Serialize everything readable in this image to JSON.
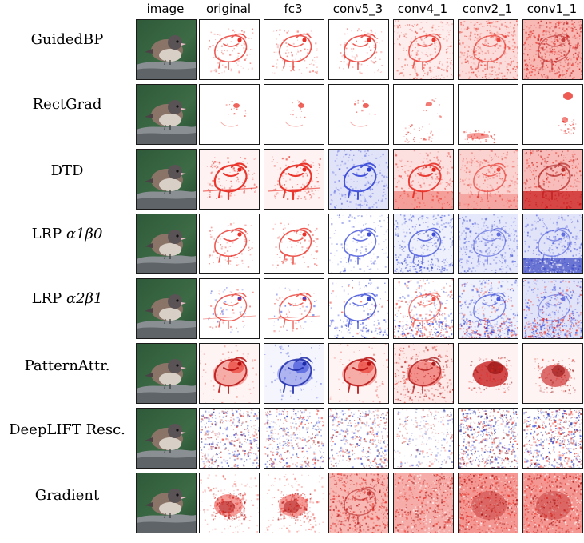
{
  "columns": [
    "image",
    "original",
    "fc3",
    "conv5_3",
    "conv4_1",
    "conv2_1",
    "conv1_1"
  ],
  "rows": [
    {
      "label": "GuidedBP",
      "maps": [
        "photo",
        "red-edge",
        "red-edge",
        "red-edge",
        "red-noise-light",
        "red-noise-med",
        "red-noise-heavy"
      ]
    },
    {
      "label": "RectGrad",
      "maps": [
        "photo",
        "sparse-eye",
        "sparse-eye",
        "sparse-eye",
        "sparse-scatter",
        "sparse-bottom",
        "sparse-right"
      ]
    },
    {
      "label": "DTD",
      "maps": [
        "photo",
        "red-edge-strong",
        "red-edge-strong",
        "blue-edge",
        "red-edge-branch",
        "red-edge-branch-soft",
        "red-heavy-bottom"
      ]
    },
    {
      "label": "LRP α1β0",
      "label_prefix": "LRP",
      "label_greek": "α1β0",
      "maps": [
        "photo",
        "red-edge",
        "red-edge",
        "blue-edge-light",
        "blue-edge-noise",
        "blue-noise",
        "blue-heavy-bottom"
      ]
    },
    {
      "label": "LRP α2β1",
      "label_prefix": "LRP",
      "label_greek": "α2β1",
      "maps": [
        "photo",
        "mixed-edge",
        "mixed-edge",
        "mixed-edge-blue",
        "mixed-noise",
        "blue-mixed-noise",
        "blue-mixed-heavy"
      ]
    },
    {
      "label": "PatternAttr.",
      "maps": [
        "photo",
        "red-solid-bird",
        "blue-solid-bird",
        "red-solid-bird",
        "red-blob-noise",
        "red-dark-bird",
        "red-dark-bird-2"
      ]
    },
    {
      "label": "DeepLIFT Resc.",
      "maps": [
        "photo",
        "mixed-chaos",
        "mixed-chaos",
        "mixed-chaos",
        "mixed-chaos-light",
        "mixed-chaos-dense",
        "mixed-chaos-dense"
      ]
    },
    {
      "label": "Gradient",
      "maps": [
        "photo",
        "red-center-blob",
        "red-center-blob",
        "red-noise-heavy",
        "red-dense",
        "red-dense-dark",
        "red-dense-dark"
      ]
    }
  ],
  "colors": {
    "positive": "#e8241a",
    "negative": "#2a3cd6",
    "border": "#1a1a1a"
  }
}
